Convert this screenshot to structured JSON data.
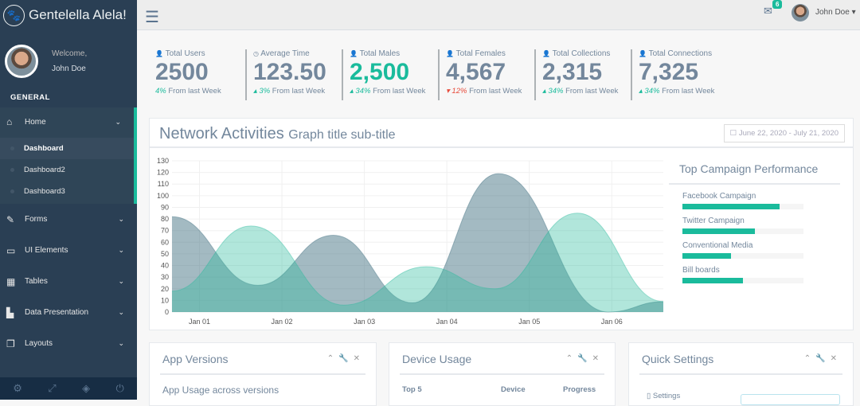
{
  "brand": {
    "title": "Gentelella Alela!",
    "icon": "paw-icon"
  },
  "profile": {
    "welcome": "Welcome,",
    "name": "John Doe"
  },
  "sidebar": {
    "section": "GENERAL",
    "home": "Home",
    "sub": [
      "Dashboard",
      "Dashboard2",
      "Dashboard3"
    ],
    "items": [
      {
        "label": "Forms",
        "icon": "edit-icon"
      },
      {
        "label": "UI Elements",
        "icon": "desktop-icon"
      },
      {
        "label": "Tables",
        "icon": "table-icon"
      },
      {
        "label": "Data Presentation",
        "icon": "bar-chart-icon"
      },
      {
        "label": "Layouts",
        "icon": "clone-icon"
      }
    ]
  },
  "topnav": {
    "mail_count": "6",
    "user": "John Doe"
  },
  "tiles": [
    {
      "title": "Total Users",
      "value": "2500",
      "pct": "4%",
      "suffix": " From last Week",
      "trend": "none",
      "color": "#73879c"
    },
    {
      "title": "Average Time",
      "value": "123.50",
      "pct": "3%",
      "suffix": " From last Week",
      "trend": "up",
      "color": "#73879c"
    },
    {
      "title": "Total Males",
      "value": "2,500",
      "pct": "34%",
      "suffix": " From last Week",
      "trend": "up",
      "color": "#1abb9c"
    },
    {
      "title": "Total Females",
      "value": "4,567",
      "pct": "12%",
      "suffix": " From last Week",
      "trend": "down",
      "color": "#73879c"
    },
    {
      "title": "Total Collections",
      "value": "2,315",
      "pct": "34%",
      "suffix": " From last Week",
      "trend": "up",
      "color": "#73879c"
    },
    {
      "title": "Total Connections",
      "value": "7,325",
      "pct": "34%",
      "suffix": " From last Week",
      "trend": "up",
      "color": "#73879c"
    }
  ],
  "network": {
    "title": "Network Activities",
    "subtitle": "Graph title sub-title",
    "date_range": "June 22, 2020 - July 21, 2020"
  },
  "chart_data": {
    "type": "area",
    "xlabel": "",
    "ylabel": "",
    "ylim": [
      0,
      130
    ],
    "yticks": [
      0,
      10,
      20,
      30,
      40,
      50,
      60,
      70,
      80,
      90,
      100,
      110,
      120,
      130
    ],
    "xticks": [
      "Jan 01",
      "Jan 02",
      "Jan 03",
      "Jan 04",
      "Jan 05",
      "Jan 06"
    ],
    "grid": true,
    "series": [
      {
        "color": "#3e6f80",
        "x": [
          "Dec 31 16:00",
          "Jan 01 17:00",
          "Jan 02 15:00",
          "Jan 03 14:00",
          "Jan 04 15:00",
          "Jan 05 23:00",
          "Jan 06 15:00"
        ],
        "values": [
          82,
          23,
          66,
          8,
          119,
          0,
          9
        ]
      },
      {
        "color": "#26b99a",
        "x": [
          "Dec 31 16:00",
          "Jan 01 15:00",
          "Jan 02 18:00",
          "Jan 03 18:00",
          "Jan 04 14:00",
          "Jan 05 14:00",
          "Jan 06 15:00"
        ],
        "values": [
          18,
          74,
          6,
          39,
          20,
          85,
          9
        ]
      }
    ]
  },
  "campaign": {
    "title": "Top Campaign Performance",
    "items": [
      {
        "label": "Facebook Campaign",
        "pct": 80
      },
      {
        "label": "Twitter Campaign",
        "pct": 60
      },
      {
        "label": "Conventional Media",
        "pct": 40
      },
      {
        "label": "Bill boards",
        "pct": 50
      }
    ]
  },
  "panels": [
    {
      "title": "App Versions",
      "sub": "App Usage across versions"
    },
    {
      "title": "Device Usage",
      "cols": [
        "Top 5",
        "Device",
        "Progress"
      ]
    },
    {
      "title": "Quick Settings",
      "item": "Settings"
    }
  ]
}
